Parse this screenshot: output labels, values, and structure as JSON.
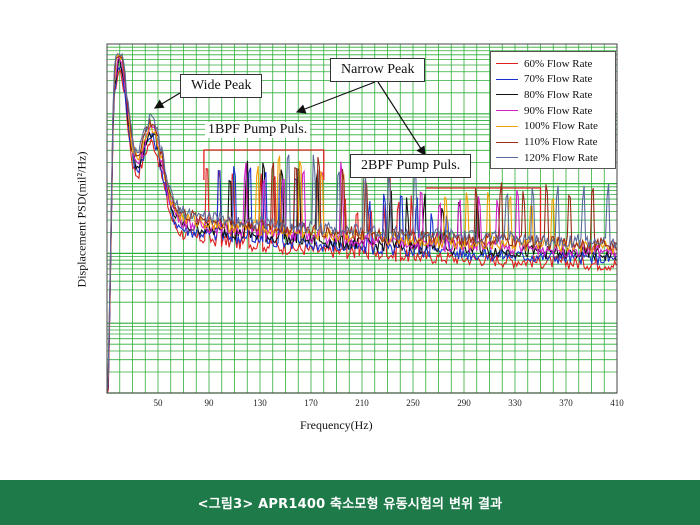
{
  "caption": "<그림3> APR1400 축소모형 유동시험의 변위 결과",
  "colors": {
    "plot_background": "#ffffff",
    "grid": "#2fae3a",
    "caption_bar": "#1f7a4a"
  },
  "chart_data": {
    "type": "line",
    "xlabel": "Frequency(Hz)",
    "ylabel": "Displacement PSD(mil²/Hz)",
    "xlim": [
      10,
      410
    ],
    "x_ticks": [
      50,
      90,
      130,
      170,
      210,
      250,
      290,
      330,
      370,
      410
    ],
    "y_scale": "log",
    "grid": true,
    "legend_position": "top-right",
    "annotations": [
      {
        "text": "Wide Peak",
        "boxed": true
      },
      {
        "text": "Narrow Peak",
        "boxed": true
      },
      {
        "text": "1BPF Pump Puls.",
        "boxed": false
      },
      {
        "text": "2BPF Pump Puls.",
        "boxed": true
      }
    ],
    "series": [
      {
        "name": "60% Flow Rate",
        "color": "#e02020",
        "offset": 0.0,
        "pulse_start": 88,
        "pulse_step": 4.8
      },
      {
        "name": "70% Flow Rate",
        "color": "#1a2fd0",
        "offset": 0.6,
        "pulse_start": 98,
        "pulse_step": 5.5
      },
      {
        "name": "80% Flow Rate",
        "color": "#111111",
        "offset": 1.1,
        "pulse_start": 106,
        "pulse_step": 6.2
      },
      {
        "name": "90% Flow Rate",
        "color": "#d020c8",
        "offset": 1.5,
        "pulse_start": 118,
        "pulse_step": 6.9
      },
      {
        "name": "100% Flow Rate",
        "color": "#f0a000",
        "offset": 1.9,
        "pulse_start": 128,
        "pulse_step": 7.6
      },
      {
        "name": "110% Flow Rate",
        "color": "#9a2a1a",
        "offset": 2.3,
        "pulse_start": 140,
        "pulse_step": 8.3
      },
      {
        "name": "120% Flow Rate",
        "color": "#5a6a9a",
        "offset": 2.6,
        "pulse_start": 152,
        "pulse_step": 9.0
      }
    ]
  }
}
